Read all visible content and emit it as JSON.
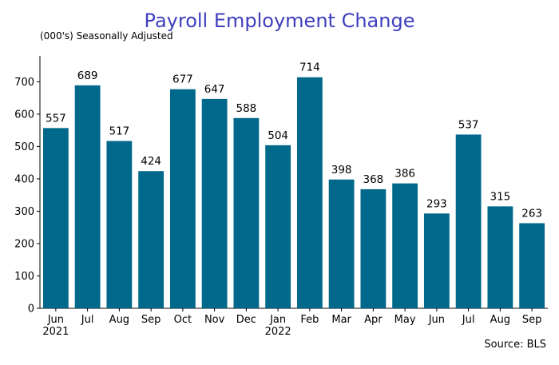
{
  "chart_data": {
    "type": "bar",
    "title": "Payroll Employment Change",
    "subtitle": "(000's) Seasonally Adjusted",
    "source": "Source: BLS",
    "categories": [
      "Jun",
      "Jul",
      "Aug",
      "Sep",
      "Oct",
      "Nov",
      "Dec",
      "Jan",
      "Feb",
      "Mar",
      "Apr",
      "May",
      "Jun",
      "Jul",
      "Aug",
      "Sep"
    ],
    "year_labels": [
      "2021",
      "",
      "",
      "",
      "",
      "",
      "",
      "2022",
      "",
      "",
      "",
      "",
      "",
      "",
      "",
      ""
    ],
    "values": [
      557,
      689,
      517,
      424,
      677,
      647,
      588,
      504,
      714,
      398,
      368,
      386,
      293,
      537,
      315,
      263
    ],
    "data_labels": [
      "557",
      "689",
      "517",
      "424",
      "677",
      "647",
      "588",
      "504",
      "714",
      "398",
      "368",
      "386",
      "293",
      "537",
      "315",
      "263"
    ],
    "ylim": [
      0,
      780
    ],
    "yticks": [
      0,
      100,
      200,
      300,
      400,
      500,
      600,
      700
    ],
    "xlabel": "",
    "ylabel": "",
    "grid": false,
    "legend": "none",
    "bar_color": "#00688b",
    "title_color": "#3f3fbf"
  }
}
